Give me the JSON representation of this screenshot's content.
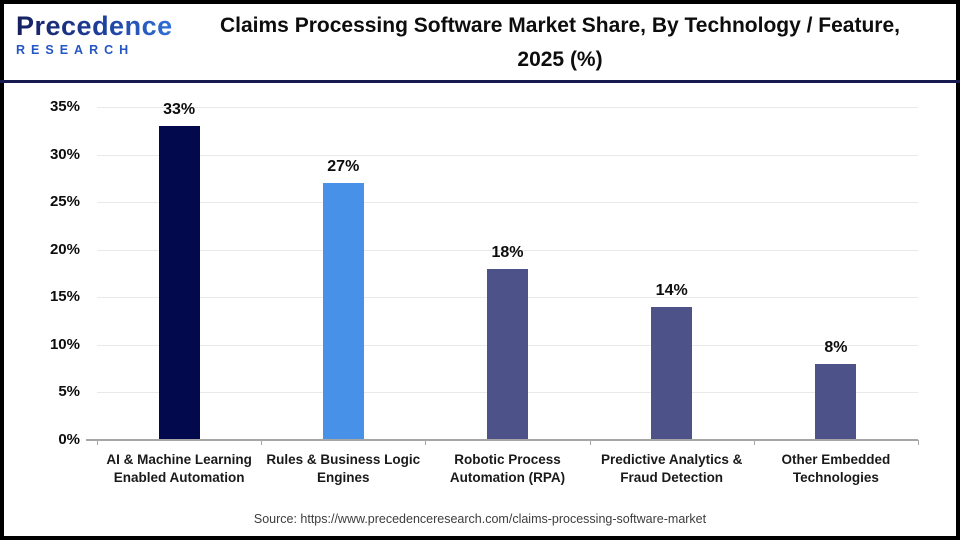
{
  "logo": {
    "brand": "Precedence",
    "subtitle": "RESEARCH"
  },
  "header": {
    "title": "Claims Processing Software Market Share, By Technology / Feature, 2025 (%)"
  },
  "footer": {
    "source": "Source: https://www.precedenceresearch.com/claims-processing-software-market"
  },
  "colors": {
    "divider": "#161a4e",
    "gridline": "#e9e9e9",
    "axis": "#a6a6a6",
    "text": "#0d0d0d",
    "brand_gradient_start": "#17205f",
    "brand_gradient_end": "#2f70d7",
    "brand_subtitle": "#2456c4"
  },
  "chart_data": {
    "type": "bar",
    "title": "Claims Processing Software Market Share, By Technology / Feature, 2025 (%)",
    "categories": [
      "AI & Machine Learning Enabled Automation",
      "Rules & Business Logic Engines",
      "Robotic Process Automation (RPA)",
      "Predictive Analytics & Fraud Detection",
      "Other Embedded Technologies"
    ],
    "values": [
      33,
      27,
      18,
      14,
      8
    ],
    "value_labels": [
      "33%",
      "27%",
      "18%",
      "14%",
      "8%"
    ],
    "bar_colors": [
      "#02094c",
      "#4791e8",
      "#4d5388",
      "#4d5388",
      "#4d5388"
    ],
    "xlabel": "",
    "ylabel": "",
    "ylim": [
      0,
      35
    ],
    "ytick_step": 5,
    "ytick_labels": [
      "0%",
      "5%",
      "10%",
      "15%",
      "20%",
      "25%",
      "30%",
      "35%"
    ],
    "grid": true,
    "legend": false,
    "unit": "%"
  }
}
